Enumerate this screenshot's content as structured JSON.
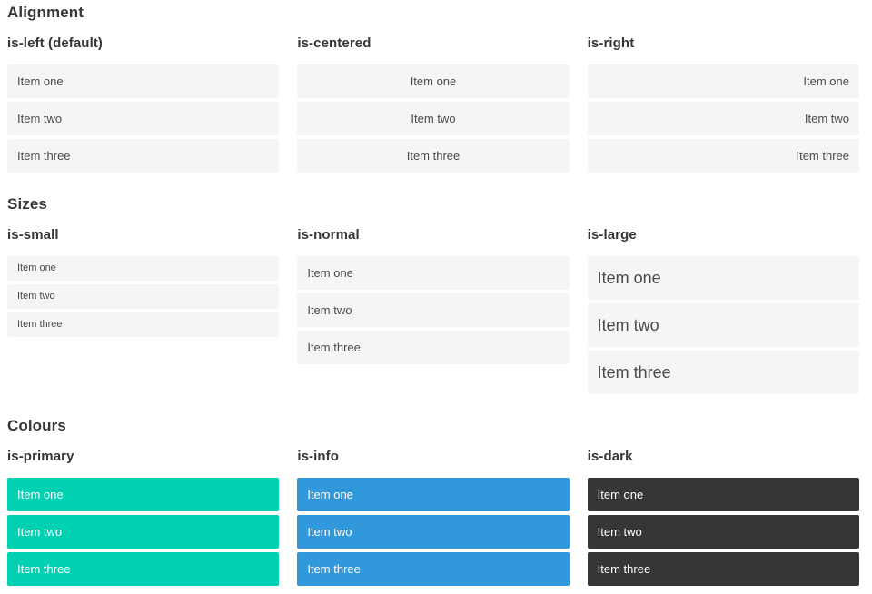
{
  "colors": {
    "primary": "#00d1b2",
    "info": "#3298dc",
    "dark": "#363636",
    "item_background": "#f5f5f5",
    "item_text": "#4a4a4a",
    "heading_text": "#363636",
    "colored_item_text": "#ffffff"
  },
  "sections": [
    {
      "title": "Alignment",
      "columns": [
        {
          "subtitle": "is-left (default)",
          "items": [
            "Item one",
            "Item two",
            "Item three"
          ]
        },
        {
          "subtitle": "is-centered",
          "items": [
            "Item one",
            "Item two",
            "Item three"
          ]
        },
        {
          "subtitle": "is-right",
          "items": [
            "Item one",
            "Item two",
            "Item three"
          ]
        }
      ]
    },
    {
      "title": "Sizes",
      "columns": [
        {
          "subtitle": "is-small",
          "items": [
            "Item one",
            "Item two",
            "Item three"
          ]
        },
        {
          "subtitle": "is-normal",
          "items": [
            "Item one",
            "Item two",
            "Item three"
          ]
        },
        {
          "subtitle": "is-large",
          "items": [
            "Item one",
            "Item two",
            "Item three"
          ]
        }
      ]
    },
    {
      "title": "Colours",
      "columns": [
        {
          "subtitle": "is-primary",
          "items": [
            "Item one",
            "Item two",
            "Item three"
          ]
        },
        {
          "subtitle": "is-info",
          "items": [
            "Item one",
            "Item two",
            "Item three"
          ]
        },
        {
          "subtitle": "is-dark",
          "items": [
            "Item one",
            "Item two",
            "Item three"
          ]
        }
      ]
    }
  ]
}
